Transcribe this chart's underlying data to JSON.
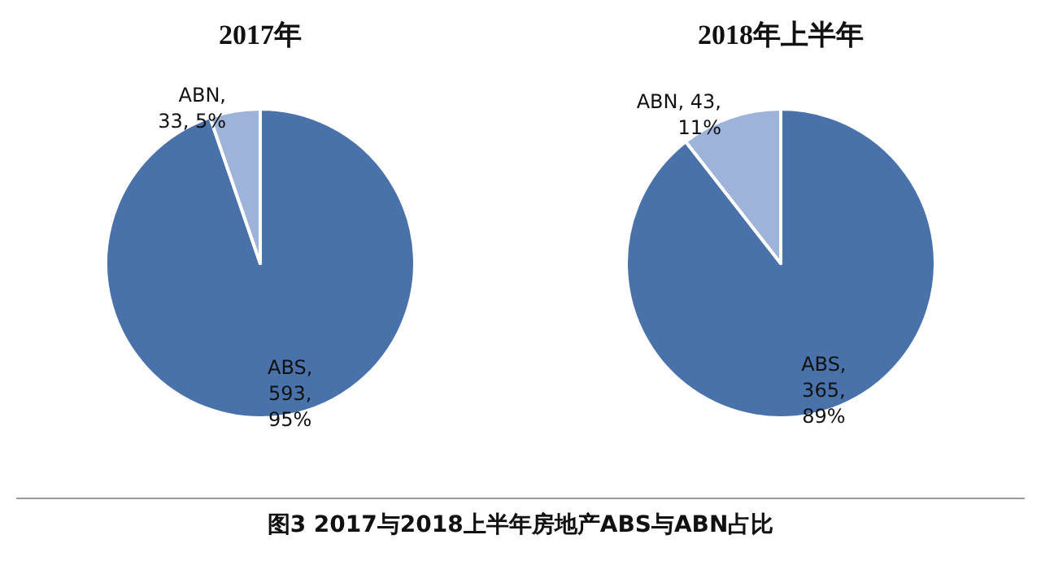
{
  "chart_data": [
    {
      "type": "pie",
      "title": "2017年",
      "categories": [
        "ABS",
        "ABN"
      ],
      "values": [
        593,
        33
      ],
      "colors": [
        "#4a72aa",
        "#9db3d9"
      ],
      "value_labels": [
        ",\n593,\n95%",
        ",\n33, 5%"
      ]
    },
    {
      "type": "pie",
      "title": "2018年上半年",
      "categories": [
        "ABS",
        "ABN"
      ],
      "values": [
        365,
        43
      ],
      "colors": [
        "#4a72aa",
        "#9db3d9"
      ],
      "value_labels": [
        ",\n365,\n89%",
        ", 43,\n11%"
      ],
      "annotations": [
        "图3  2017与2018上半年房地产ABS与ABN占比"
      ]
    }
  ]
}
